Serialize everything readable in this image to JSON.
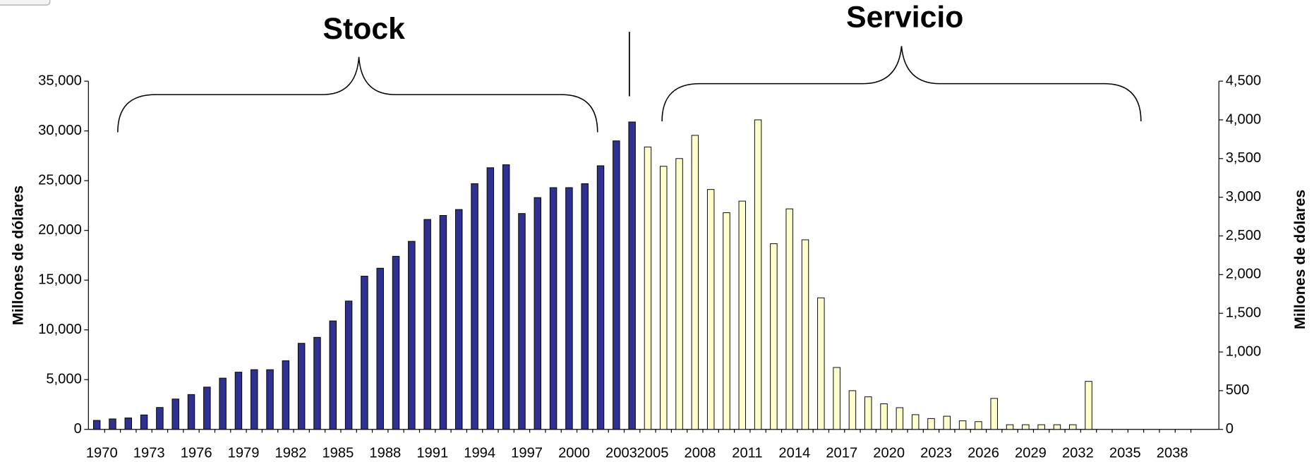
{
  "chart_data": {
    "type": "bar",
    "y_label": "Millones de dólares",
    "y2_label": "Millones de dólares",
    "categories": [
      "1970",
      null,
      null,
      "1973",
      null,
      null,
      "1976",
      null,
      null,
      "1979",
      null,
      null,
      "1982",
      null,
      null,
      "1985",
      null,
      null,
      "1988",
      null,
      null,
      "1991",
      null,
      null,
      "1994",
      null,
      null,
      "1997",
      null,
      null,
      "2000",
      null,
      null,
      "2003",
      null,
      "2005",
      null,
      null,
      "2008",
      null,
      null,
      "2011",
      null,
      null,
      "2014",
      null,
      null,
      "2017",
      null,
      null,
      "2020",
      null,
      null,
      "2023",
      null,
      null,
      "2026",
      null,
      null,
      "2029",
      null,
      null,
      "2032",
      null,
      null,
      "2035",
      null,
      null,
      "2038",
      null
    ],
    "series": [
      {
        "name": "Stock",
        "color": "#2e3192",
        "axis": "y",
        "values": [
          900,
          1050,
          1150,
          1450,
          2200,
          3050,
          3500,
          4250,
          5150,
          5750,
          6000,
          6000,
          6900,
          8650,
          9250,
          10900,
          12900,
          15400,
          16200,
          17400,
          18900,
          21100,
          21500,
          22100,
          24700,
          26300,
          26600,
          21700,
          23300,
          24300,
          24300,
          24700,
          26500,
          29000,
          30900,
          null,
          null,
          null,
          null,
          null,
          null,
          null,
          null,
          null,
          null,
          null,
          null,
          null,
          null,
          null,
          null,
          null,
          null,
          null,
          null,
          null,
          null,
          null,
          null,
          null,
          null,
          null,
          null,
          null,
          null,
          null,
          null,
          null,
          null,
          null
        ]
      },
      {
        "name": "Servicio",
        "color": "#ffffcc",
        "axis": "y2",
        "values": [
          null,
          null,
          null,
          null,
          null,
          null,
          null,
          null,
          null,
          null,
          null,
          null,
          null,
          null,
          null,
          null,
          null,
          null,
          null,
          null,
          null,
          null,
          null,
          null,
          null,
          null,
          null,
          null,
          null,
          null,
          null,
          null,
          null,
          null,
          null,
          3650,
          3400,
          3500,
          3800,
          3100,
          2800,
          2950,
          4000,
          2400,
          2850,
          2450,
          1700,
          800,
          500,
          420,
          330,
          280,
          190,
          140,
          170,
          110,
          100,
          400,
          60,
          60,
          60,
          60,
          60,
          620,
          null,
          null,
          null,
          null,
          null,
          null
        ]
      }
    ],
    "ylim": [
      0,
      35000
    ],
    "yticks": [
      0,
      {
        "value": 5000,
        "label": "5,000"
      },
      {
        "value": 10000,
        "label": "10,000"
      },
      {
        "value": 15000,
        "label": "15,000"
      },
      {
        "value": 20000,
        "label": "20,000"
      },
      {
        "value": 25000,
        "label": "25,000"
      },
      {
        "value": 30000,
        "label": "30,000"
      },
      {
        "value": 35000,
        "label": "35,000"
      }
    ],
    "y2lim": [
      0,
      4500
    ],
    "y2ticks": [
      0,
      500,
      {
        "value": 1000,
        "label": "1,000"
      },
      {
        "value": 1500,
        "label": "1,500"
      },
      {
        "value": 2000,
        "label": "2,000"
      },
      {
        "value": 2500,
        "label": "2,500"
      },
      {
        "value": 3000,
        "label": "3,000"
      },
      {
        "value": 3500,
        "label": "3,500"
      },
      {
        "value": 4000,
        "label": "4,000"
      },
      {
        "value": 4500,
        "label": "4,500"
      }
    ],
    "grid": false
  }
}
